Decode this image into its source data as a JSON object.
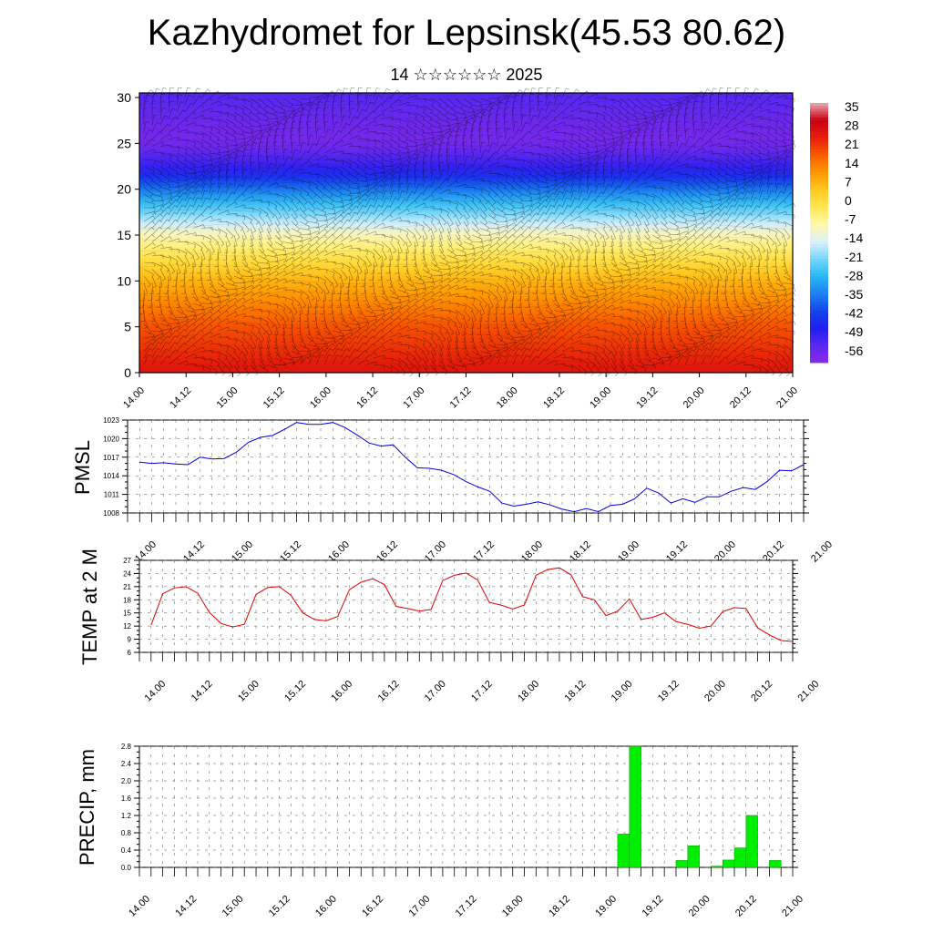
{
  "title": "Kazhydromet for Lepsinsk(45.53 80.62)",
  "subtitle": "14 ☆☆☆☆☆☆ 2025",
  "colors": {
    "pmsl_line": "#0000dd",
    "temp_line": "#dd0000",
    "precip_bar": "#00ee00"
  },
  "chart_data": [
    {
      "type": "heatmap",
      "title": "",
      "x_tick_labels": [
        "14.00",
        "14.12",
        "15.00",
        "15.12",
        "16.00",
        "16.12",
        "17.00",
        "17.12",
        "18.00",
        "18.12",
        "19.00",
        "19.12",
        "20.00",
        "20.12",
        "21.00"
      ],
      "y_ticks": [
        0,
        5,
        10,
        15,
        20,
        25,
        30
      ],
      "ylim": [
        0,
        30.5
      ],
      "colorbar_labels": [
        35,
        28,
        21,
        14,
        7,
        0,
        -7,
        -14,
        -21,
        -28,
        -35,
        -42,
        -49,
        -56
      ],
      "colorbar_range": [
        -63,
        42
      ],
      "vertical_profile": [
        {
          "level": 0,
          "value": 30
        },
        {
          "level": 5,
          "value": 22
        },
        {
          "level": 10,
          "value": 10
        },
        {
          "level": 15,
          "value": -8
        },
        {
          "level": 19,
          "value": -30
        },
        {
          "level": 22,
          "value": -50
        },
        {
          "level": 25,
          "value": -60
        },
        {
          "level": 28,
          "value": -58
        },
        {
          "level": 30.5,
          "value": -55
        }
      ]
    },
    {
      "type": "line",
      "ylabel": "PMSL",
      "x_tick_labels": [
        "14.00",
        "14.12",
        "15.00",
        "15.12",
        "16.00",
        "16.12",
        "17.00",
        "17.12",
        "18.00",
        "18.12",
        "19.00",
        "19.12",
        "20.00",
        "20.12",
        "21.00"
      ],
      "y_ticks": [
        1008,
        1011,
        1014,
        1017,
        1020,
        1023
      ],
      "ylim": [
        1008,
        1023
      ],
      "x_steps": 56,
      "x": [
        1,
        2,
        3,
        4,
        5,
        6,
        7,
        8,
        9,
        10,
        11,
        12,
        13,
        14,
        15,
        16,
        17,
        18,
        19,
        20,
        21,
        22,
        23,
        24,
        25,
        26,
        27,
        28,
        29,
        30,
        31,
        32,
        33,
        34,
        35,
        36,
        37,
        38,
        39,
        40,
        41,
        42,
        43,
        44,
        45,
        46,
        47,
        48,
        49,
        50,
        51,
        52,
        53,
        54,
        55,
        56
      ],
      "values": [
        1016.2,
        1016.0,
        1016.1,
        1015.9,
        1015.8,
        1017.0,
        1016.7,
        1016.8,
        1017.8,
        1019.4,
        1020.2,
        1020.5,
        1021.5,
        1022.6,
        1022.3,
        1022.3,
        1022.6,
        1021.8,
        1020.6,
        1019.3,
        1018.8,
        1019.0,
        1017.0,
        1015.3,
        1015.2,
        1014.9,
        1014.2,
        1013.1,
        1012.2,
        1011.5,
        1009.6,
        1009.1,
        1009.4,
        1009.8,
        1009.3,
        1008.6,
        1008.2,
        1008.7,
        1008.2,
        1009.2,
        1009.4,
        1010.3,
        1012.0,
        1011.2,
        1009.6,
        1010.3,
        1009.7,
        1010.6,
        1010.6,
        1011.5,
        1012.1,
        1011.8,
        1013.1,
        1014.9,
        1014.8,
        1015.8
      ]
    },
    {
      "type": "line",
      "ylabel": "TEMP at 2 M",
      "x_tick_labels": [
        "14.00",
        "14.12",
        "15.00",
        "15.12",
        "16.00",
        "16.12",
        "17.00",
        "17.12",
        "18.00",
        "18.12",
        "19.00",
        "19.12",
        "20.00",
        "20.12",
        "21.00"
      ],
      "y_ticks": [
        6,
        9,
        12,
        15,
        18,
        21,
        24,
        27
      ],
      "ylim": [
        6,
        27
      ],
      "x_steps": 56,
      "x": [
        1,
        2,
        3,
        4,
        5,
        6,
        7,
        8,
        9,
        10,
        11,
        12,
        13,
        14,
        15,
        16,
        17,
        18,
        19,
        20,
        21,
        22,
        23,
        24,
        25,
        26,
        27,
        28,
        29,
        30,
        31,
        32,
        33,
        34,
        35,
        36,
        37,
        38,
        39,
        40,
        41,
        42,
        43,
        44,
        45,
        46,
        47,
        48,
        49,
        50,
        51,
        52,
        53,
        54,
        55,
        56
      ],
      "values": [
        12.2,
        19.4,
        20.7,
        21.0,
        19.5,
        15.1,
        12.6,
        11.8,
        12.4,
        19.2,
        20.8,
        21.0,
        19.0,
        15.0,
        13.5,
        13.2,
        14.2,
        20.3,
        22.0,
        22.8,
        21.5,
        16.5,
        16.0,
        15.4,
        15.8,
        22.4,
        23.6,
        24.1,
        22.5,
        17.4,
        16.8,
        15.9,
        16.8,
        23.6,
        24.9,
        25.3,
        23.7,
        18.7,
        18.0,
        14.4,
        15.4,
        18.2,
        13.5,
        14.0,
        15.0,
        13.0,
        12.4,
        11.5,
        12.0,
        15.3,
        16.2,
        16.0,
        11.6,
        10.0,
        8.7,
        8.5
      ]
    },
    {
      "type": "bar",
      "ylabel": "PRECIP, mm",
      "x_tick_labels": [
        "14.00",
        "14.12",
        "15.00",
        "15.12",
        "16.00",
        "16.12",
        "17.00",
        "17.12",
        "18.00",
        "18.12",
        "19.00",
        "19.12",
        "20.00",
        "20.12",
        "21.00"
      ],
      "y_ticks": [
        0.0,
        0.4,
        0.8,
        1.2,
        1.6,
        2.0,
        2.4,
        2.8
      ],
      "ylim": [
        0,
        2.8
      ],
      "x_steps": 56,
      "x": [
        42,
        43,
        47,
        48,
        50,
        51,
        52,
        53,
        55
      ],
      "values": [
        0.77,
        2.8,
        0.16,
        0.5,
        0.03,
        0.17,
        0.45,
        1.2,
        0.16
      ]
    }
  ]
}
